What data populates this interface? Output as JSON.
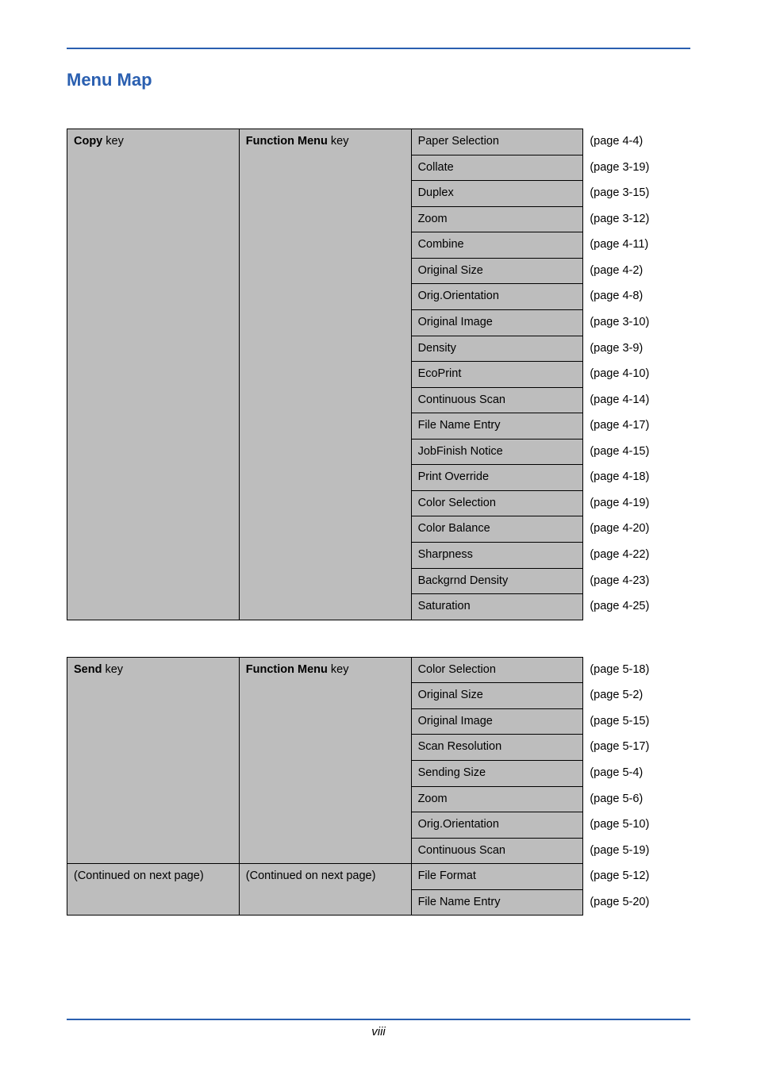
{
  "title": "Menu Map",
  "page_number": "viii",
  "colors": {
    "accent": "#2a5fb0",
    "cell_bg": "#bdbdbd"
  },
  "tables": [
    {
      "key": {
        "bold": "Copy",
        "rest": " key"
      },
      "func": {
        "bold": "Function Menu",
        "rest": " key"
      },
      "key_continued": null,
      "func_continued": null,
      "rows": [
        {
          "item": "Paper Selection",
          "page": "(page 4-4)"
        },
        {
          "item": "Collate",
          "page": "(page 3-19)"
        },
        {
          "item": "Duplex",
          "page": "(page 3-15)"
        },
        {
          "item": "Zoom",
          "page": "(page 3-12)"
        },
        {
          "item": "Combine",
          "page": "(page 4-11)"
        },
        {
          "item": "Original Size",
          "page": "(page 4-2)"
        },
        {
          "item": "Orig.Orientation",
          "page": "(page 4-8)"
        },
        {
          "item": "Original Image",
          "page": "(page 3-10)"
        },
        {
          "item": "Density",
          "page": "(page 3-9)"
        },
        {
          "item": "EcoPrint",
          "page": "(page 4-10)"
        },
        {
          "item": "Continuous Scan",
          "page": "(page 4-14)"
        },
        {
          "item": "File Name Entry",
          "page": "(page 4-17)"
        },
        {
          "item": "JobFinish Notice",
          "page": "(page 4-15)"
        },
        {
          "item": "Print Override",
          "page": "(page 4-18)"
        },
        {
          "item": "Color Selection",
          "page": "(page 4-19)"
        },
        {
          "item": "Color Balance",
          "page": "(page 4-20)"
        },
        {
          "item": "Sharpness",
          "page": "(page 4-22)"
        },
        {
          "item": "Backgrnd Density",
          "page": "(page 4-23)"
        },
        {
          "item": "Saturation",
          "page": "(page 4-25)"
        }
      ]
    },
    {
      "key": {
        "bold": "Send",
        "rest": " key"
      },
      "func": {
        "bold": "Function Menu",
        "rest": " key"
      },
      "key_continued": "(Continued on next page)",
      "func_continued": "(Continued on next page)",
      "rows": [
        {
          "item": "Color Selection",
          "page": "(page 5-18)"
        },
        {
          "item": "Original Size",
          "page": "(page 5-2)"
        },
        {
          "item": "Original Image",
          "page": "(page 5-15)"
        },
        {
          "item": "Scan Resolution",
          "page": "(page 5-17)"
        },
        {
          "item": "Sending Size",
          "page": "(page 5-4)"
        },
        {
          "item": "Zoom",
          "page": "(page 5-6)"
        },
        {
          "item": "Orig.Orientation",
          "page": "(page 5-10)"
        },
        {
          "item": "Continuous Scan",
          "page": "(page 5-19)"
        },
        {
          "item": "File Format",
          "page": "(page 5-12)"
        },
        {
          "item": "File Name Entry",
          "page": "(page 5-20)"
        }
      ]
    }
  ]
}
